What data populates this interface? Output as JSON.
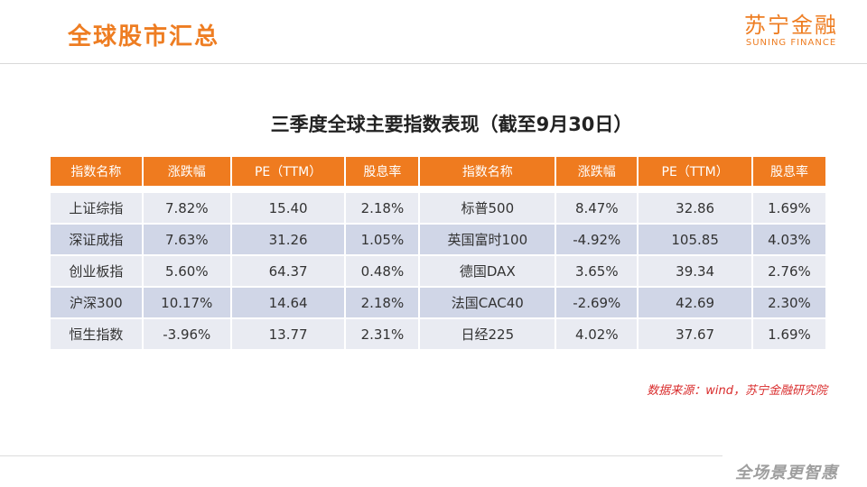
{
  "header": {
    "title": "全球股市汇总",
    "logo_cn": "苏宁金融",
    "logo_en": "SUNING FINANCE"
  },
  "table_title": "三季度全球主要指数表现（截至9月30日）",
  "table": {
    "headers": [
      "指数名称",
      "涨跌幅",
      "PE（TTM）",
      "股息率",
      "指数名称",
      "涨跌幅",
      "PE（TTM）",
      "股息率"
    ],
    "rows": [
      [
        "上证综指",
        "7.82%",
        "15.40",
        "2.18%",
        "标普500",
        "8.47%",
        "32.86",
        "1.69%"
      ],
      [
        "深证成指",
        "7.63%",
        "31.26",
        "1.05%",
        "英国富时100",
        "-4.92%",
        "105.85",
        "4.03%"
      ],
      [
        "创业板指",
        "5.60%",
        "64.37",
        "0.48%",
        "德国DAX",
        "3.65%",
        "39.34",
        "2.76%"
      ],
      [
        "沪深300",
        "10.17%",
        "14.64",
        "2.18%",
        "法国CAC40",
        "-2.69%",
        "42.69",
        "2.30%"
      ],
      [
        "恒生指数",
        "-3.96%",
        "13.77",
        "2.31%",
        "日经225",
        "4.02%",
        "37.67",
        "1.69%"
      ]
    ]
  },
  "source": "数据来源：wind，苏宁金融研究院",
  "footer": {
    "slogan": "全场景更智惠"
  },
  "colors": {
    "accent": "#ef7b1f",
    "row_light": "#e9ebf2",
    "row_dark": "#d0d6e7",
    "source_red": "#d92b2b"
  }
}
